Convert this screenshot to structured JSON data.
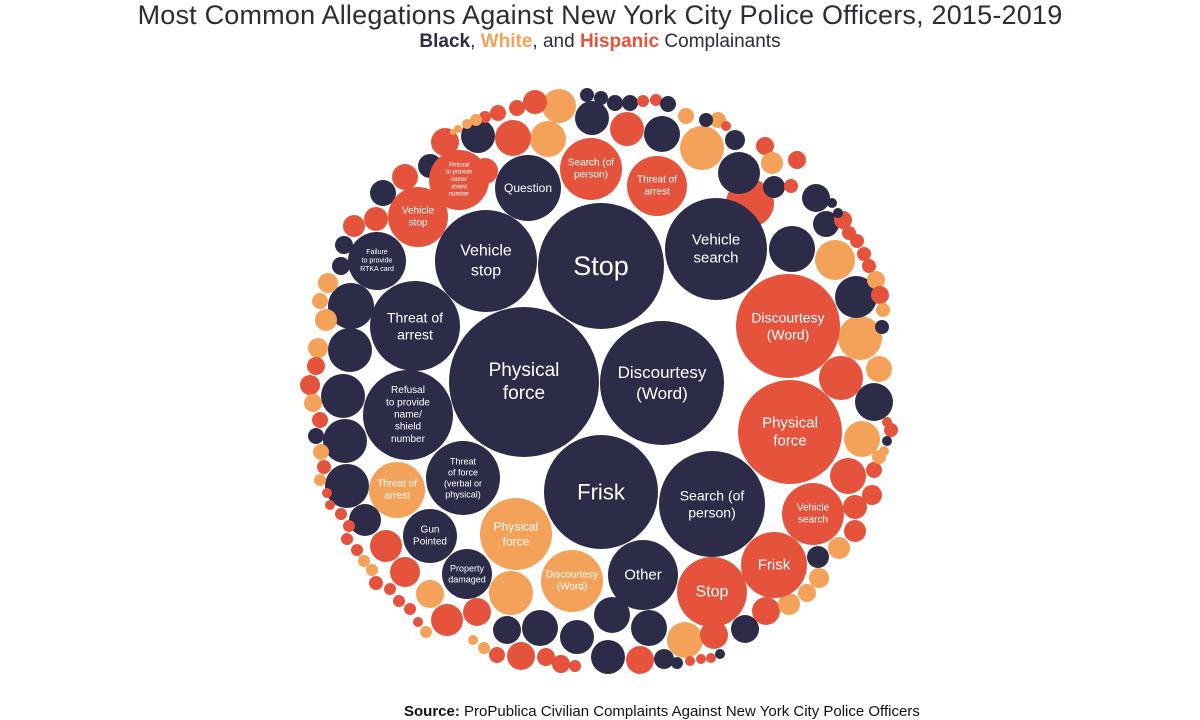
{
  "title": "Most Common Allegations Against New York City Police Officers, 2015-2019",
  "subtitle": {
    "black": "Black",
    "sep1": ", ",
    "white": "White",
    "sep2": ", and ",
    "hispanic": "Hispanic",
    "rest": " Complainants"
  },
  "source": {
    "label": "Source:",
    "text": "ProPublica Civilian Complaints Against New York City Police Officers"
  },
  "colors": {
    "Black": "#2c2c48",
    "White": "#f4a259",
    "Hispanic": "#e5533d"
  },
  "chart_data": {
    "type": "packed-bubble",
    "groups": [
      "Black",
      "White",
      "Hispanic"
    ],
    "labeled_bubbles": [
      {
        "label": "Stop",
        "group": "Black"
      },
      {
        "label": "Physical force",
        "group": "Black"
      },
      {
        "label": "Discourtesy (Word)",
        "group": "Black"
      },
      {
        "label": "Frisk",
        "group": "Black"
      },
      {
        "label": "Search (of person)",
        "group": "Black"
      },
      {
        "label": "Vehicle search",
        "group": "Black"
      },
      {
        "label": "Vehicle stop",
        "group": "Black"
      },
      {
        "label": "Threat of arrest",
        "group": "Black"
      },
      {
        "label": "Refusal to provide name/ shield number",
        "group": "Black"
      },
      {
        "label": "Question",
        "group": "Black"
      },
      {
        "label": "Other",
        "group": "Black"
      },
      {
        "label": "Threat of force (verbal or physical)",
        "group": "Black"
      },
      {
        "label": "Gun Pointed",
        "group": "Black"
      },
      {
        "label": "Property damaged",
        "group": "Black"
      },
      {
        "label": "Failure to provide RTKA card",
        "group": "Black"
      },
      {
        "label": "Discourtesy (Word)",
        "group": "Hispanic"
      },
      {
        "label": "Physical force",
        "group": "Hispanic"
      },
      {
        "label": "Stop",
        "group": "Hispanic"
      },
      {
        "label": "Frisk",
        "group": "Hispanic"
      },
      {
        "label": "Vehicle search",
        "group": "Hispanic"
      },
      {
        "label": "Search (of person)",
        "group": "Hispanic"
      },
      {
        "label": "Threat of arrest",
        "group": "Hispanic"
      },
      {
        "label": "Vehicle stop",
        "group": "Hispanic"
      },
      {
        "label": "Refusal to provide name/ shield number",
        "group": "Hispanic"
      },
      {
        "label": "Physical force",
        "group": "White"
      },
      {
        "label": "Discourtesy (Word)",
        "group": "White"
      },
      {
        "label": "Threat of arrest",
        "group": "White"
      }
    ]
  }
}
